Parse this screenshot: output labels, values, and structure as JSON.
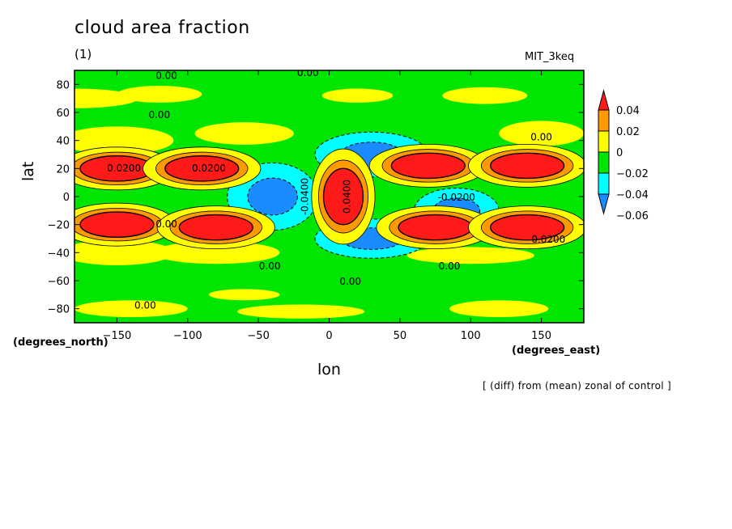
{
  "chart_data": {
    "type": "heatmap",
    "title": "cloud area fraction",
    "panel_label": "(1)",
    "model": "MIT_3keq",
    "xlabel": "lon",
    "ylabel": "lat",
    "x_units": "(degrees_east)",
    "y_units": "(degrees_north)",
    "note": "[ (diff) from (mean) zonal of control ]",
    "xlim": [
      -180,
      180
    ],
    "ylim": [
      -90,
      90
    ],
    "xticks": [
      -150,
      -100,
      -50,
      0,
      50,
      100,
      150
    ],
    "yticks": [
      -80,
      -60,
      -40,
      -20,
      0,
      20,
      40,
      60,
      80
    ],
    "colorbar": {
      "levels": [
        0.04,
        0.02,
        0,
        -0.02,
        -0.04,
        -0.06
      ],
      "colors": [
        "#ff1a1a",
        "#ff9900",
        "#ffff00",
        "#00e600",
        "#00ffff",
        "#1a8cff",
        "#ff1a1a"
      ]
    },
    "contour_labels": [
      "0.00",
      "0.00",
      "0.00",
      "0.00",
      "0.00",
      "0.00",
      "0.00",
      "0.00",
      "0.00",
      "0.0200",
      "0.0200",
      "0.0200",
      "-0.0200",
      "0.0400",
      "-0.0400"
    ],
    "positive_centers": [
      {
        "lon": -150,
        "lat": 20
      },
      {
        "lon": -150,
        "lat": -20
      },
      {
        "lon": -90,
        "lat": 20
      },
      {
        "lon": -80,
        "lat": -22
      },
      {
        "lon": 10,
        "lat": 0
      },
      {
        "lon": 70,
        "lat": 22
      },
      {
        "lon": 75,
        "lat": -22
      },
      {
        "lon": 140,
        "lat": 22
      },
      {
        "lon": 140,
        "lat": -22
      }
    ],
    "negative_centers": [
      {
        "lon": -40,
        "lat": 0
      },
      {
        "lon": 30,
        "lat": 30
      },
      {
        "lon": 30,
        "lat": -30
      },
      {
        "lon": 90,
        "lat": -10
      }
    ]
  }
}
